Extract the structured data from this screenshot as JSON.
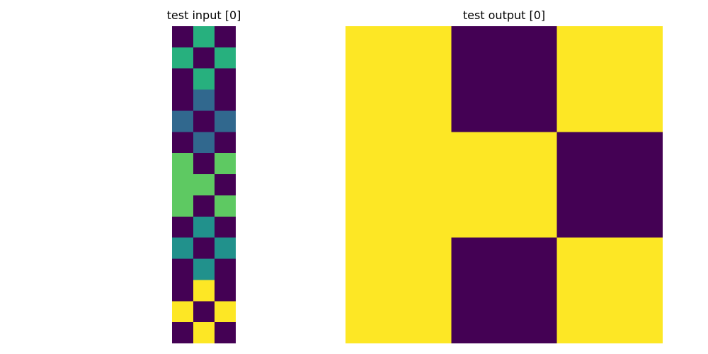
{
  "chart_data": [
    {
      "type": "heatmap",
      "title": "test input [0]",
      "rows": 15,
      "cols": 3,
      "grid": [
        [
          0,
          3,
          0
        ],
        [
          3,
          0,
          3
        ],
        [
          0,
          3,
          0
        ],
        [
          0,
          1,
          0
        ],
        [
          1,
          0,
          1
        ],
        [
          0,
          1,
          0
        ],
        [
          4,
          0,
          4
        ],
        [
          4,
          4,
          0
        ],
        [
          4,
          0,
          4
        ],
        [
          0,
          2,
          0
        ],
        [
          2,
          0,
          2
        ],
        [
          0,
          2,
          0
        ],
        [
          0,
          5,
          0
        ],
        [
          5,
          0,
          5
        ],
        [
          0,
          5,
          0
        ]
      ],
      "palette": {
        "0": "#440154",
        "1": "#31688e",
        "2": "#21918c",
        "3": "#27b07e",
        "4": "#5ec962",
        "5": "#fde725"
      },
      "axes_visible": false
    },
    {
      "type": "heatmap",
      "title": "test output [0]",
      "rows": 3,
      "cols": 3,
      "grid": [
        [
          1,
          0,
          1
        ],
        [
          1,
          1,
          0
        ],
        [
          1,
          0,
          1
        ]
      ],
      "palette": {
        "0": "#440154",
        "1": "#fde725"
      },
      "axes_visible": false
    }
  ]
}
